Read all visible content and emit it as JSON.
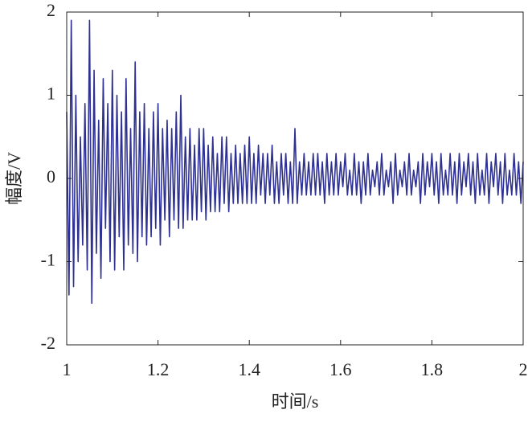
{
  "chart_data": {
    "type": "line",
    "xlabel": "时间/s",
    "ylabel": "幅度/V",
    "color": "#2e3192",
    "xlim": [
      1,
      2
    ],
    "ylim": [
      -2,
      2
    ],
    "xticks": [
      1,
      1.2,
      1.4,
      1.6,
      1.8,
      2
    ],
    "yticks": [
      -2,
      -1,
      0,
      1,
      2
    ],
    "x": [
      1,
      1.005,
      1.01,
      1.015,
      1.02,
      1.025,
      1.03,
      1.035,
      1.04,
      1.045,
      1.05,
      1.055,
      1.06,
      1.065,
      1.07,
      1.075,
      1.08,
      1.085,
      1.09,
      1.095,
      1.1,
      1.105,
      1.11,
      1.115,
      1.12,
      1.125,
      1.13,
      1.135,
      1.14,
      1.145,
      1.15,
      1.155,
      1.16,
      1.165,
      1.17,
      1.175,
      1.18,
      1.185,
      1.19,
      1.195,
      1.2,
      1.205,
      1.21,
      1.215,
      1.22,
      1.225,
      1.23,
      1.235,
      1.24,
      1.245,
      1.25,
      1.255,
      1.26,
      1.265,
      1.27,
      1.275,
      1.28,
      1.285,
      1.29,
      1.295,
      1.3,
      1.305,
      1.31,
      1.315,
      1.32,
      1.325,
      1.33,
      1.335,
      1.34,
      1.345,
      1.35,
      1.355,
      1.36,
      1.365,
      1.37,
      1.375,
      1.38,
      1.385,
      1.39,
      1.395,
      1.4,
      1.405,
      1.41,
      1.415,
      1.42,
      1.425,
      1.43,
      1.435,
      1.44,
      1.445,
      1.45,
      1.455,
      1.46,
      1.465,
      1.47,
      1.475,
      1.48,
      1.485,
      1.49,
      1.495,
      1.5,
      1.505,
      1.51,
      1.515,
      1.52,
      1.525,
      1.53,
      1.535,
      1.54,
      1.545,
      1.55,
      1.555,
      1.56,
      1.565,
      1.57,
      1.575,
      1.58,
      1.585,
      1.59,
      1.595,
      1.6,
      1.605,
      1.61,
      1.615,
      1.62,
      1.625,
      1.63,
      1.635,
      1.64,
      1.645,
      1.65,
      1.655,
      1.66,
      1.665,
      1.67,
      1.675,
      1.68,
      1.685,
      1.69,
      1.695,
      1.7,
      1.705,
      1.71,
      1.715,
      1.72,
      1.725,
      1.73,
      1.735,
      1.74,
      1.745,
      1.75,
      1.755,
      1.76,
      1.765,
      1.77,
      1.775,
      1.78,
      1.785,
      1.79,
      1.795,
      1.8,
      1.805,
      1.81,
      1.815,
      1.82,
      1.825,
      1.83,
      1.835,
      1.84,
      1.845,
      1.85,
      1.855,
      1.86,
      1.865,
      1.87,
      1.875,
      1.88,
      1.885,
      1.89,
      1.895,
      1.9,
      1.905,
      1.91,
      1.915,
      1.92,
      1.925,
      1.93,
      1.935,
      1.94,
      1.945,
      1.95,
      1.955,
      1.96,
      1.965,
      1.97,
      1.975,
      1.98,
      1.985,
      1.99,
      1.995,
      2
    ],
    "values": [
      0.8,
      -1.4,
      1.9,
      -1.3,
      1.0,
      -1.0,
      0.5,
      -0.8,
      0.9,
      -1.1,
      1.9,
      -1.5,
      1.3,
      -0.9,
      0.7,
      -1.2,
      1.2,
      -0.6,
      0.9,
      -1.0,
      1.3,
      -1.1,
      1.0,
      -0.7,
      0.8,
      -1.1,
      1.2,
      -0.8,
      0.6,
      -0.9,
      1.4,
      -1.0,
      0.8,
      -0.7,
      0.9,
      -0.8,
      0.6,
      -0.7,
      0.8,
      -0.6,
      0.9,
      -0.8,
      0.6,
      -0.5,
      0.7,
      -0.7,
      0.6,
      -0.5,
      0.8,
      -0.6,
      1.0,
      -0.6,
      0.5,
      -0.5,
      0.6,
      -0.5,
      0.4,
      -0.5,
      0.6,
      -0.4,
      0.6,
      -0.5,
      0.4,
      -0.4,
      0.5,
      -0.4,
      0.3,
      -0.4,
      0.5,
      -0.3,
      0.5,
      -0.4,
      0.3,
      -0.3,
      0.4,
      -0.3,
      0.3,
      -0.3,
      0.4,
      -0.3,
      0.5,
      -0.3,
      0.3,
      -0.3,
      0.4,
      -0.2,
      0.3,
      -0.3,
      0.3,
      -0.2,
      0.4,
      -0.3,
      0.2,
      -0.3,
      0.3,
      -0.2,
      0.3,
      -0.3,
      0.2,
      -0.3,
      0.6,
      -0.3,
      0.2,
      -0.2,
      0.3,
      -0.2,
      0.2,
      -0.2,
      0.3,
      -0.2,
      0.3,
      -0.2,
      0.2,
      -0.3,
      0.3,
      -0.2,
      0.2,
      -0.2,
      0.3,
      -0.2,
      0.2,
      -0.1,
      0.3,
      -0.2,
      0.1,
      -0.2,
      0.3,
      -0.2,
      0.2,
      -0.3,
      0.2,
      -0.2,
      0.3,
      -0.2,
      0.1,
      -0.1,
      0.2,
      -0.2,
      0.3,
      -0.2,
      0.1,
      -0.1,
      0.2,
      -0.3,
      0.3,
      -0.2,
      0.1,
      -0.1,
      0.2,
      -0.2,
      0.3,
      -0.2,
      0.1,
      -0.1,
      0.2,
      -0.3,
      0.3,
      -0.2,
      0.2,
      -0.1,
      0.3,
      -0.2,
      0.2,
      -0.3,
      0.3,
      -0.2,
      0.1,
      -0.2,
      0.3,
      -0.2,
      0.2,
      -0.3,
      0.3,
      -0.2,
      0.2,
      -0.1,
      0.3,
      -0.2,
      0.2,
      -0.3,
      0.3,
      -0.2,
      0.1,
      -0.2,
      0.3,
      -0.3,
      0.2,
      -0.1,
      0.3,
      -0.2,
      0.2,
      -0.3,
      0.3,
      -0.2,
      0.1,
      -0.2,
      0.3,
      -0.2,
      0.2,
      -0.3,
      0.2
    ]
  }
}
